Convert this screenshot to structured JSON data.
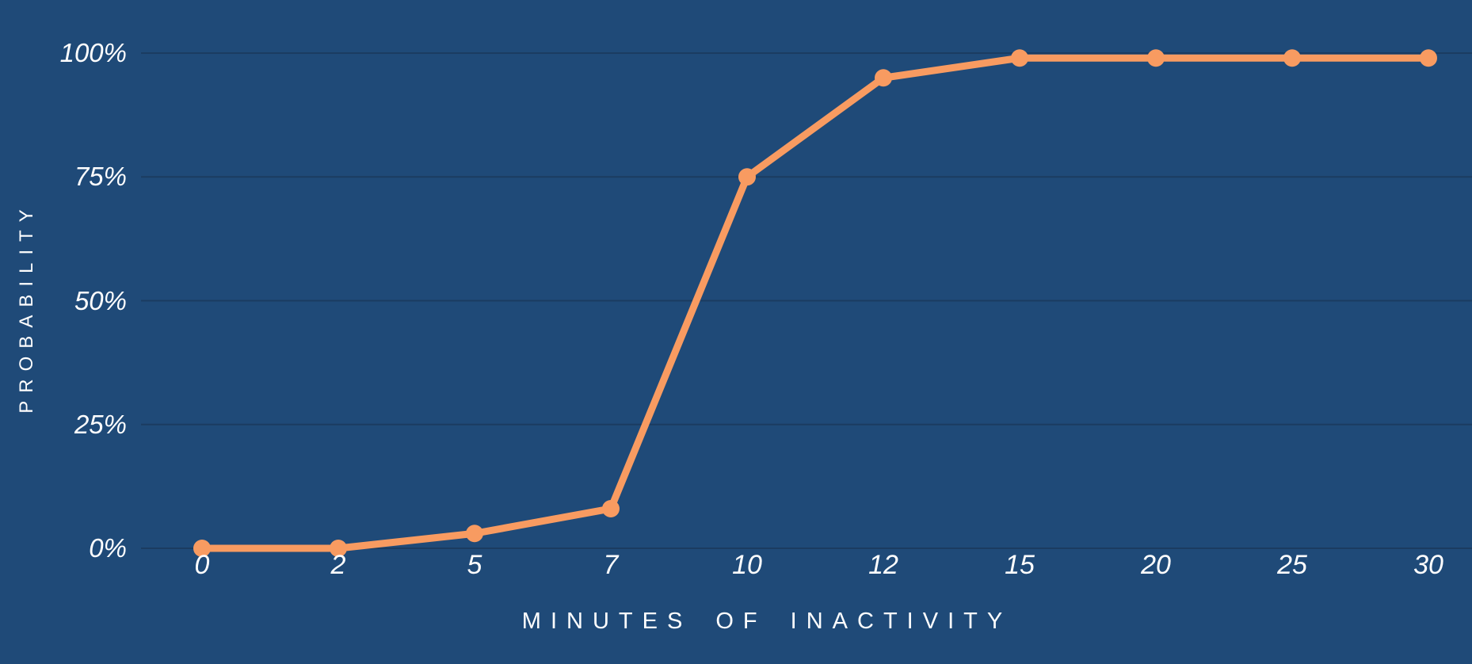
{
  "page": {
    "background_color": "#1f4a78"
  },
  "chart_data": {
    "type": "line",
    "title": "",
    "categories": [
      "0",
      "2",
      "5",
      "7",
      "10",
      "12",
      "15",
      "20",
      "25",
      "30"
    ],
    "series": [
      {
        "name": "probability",
        "values": [
          0,
          0,
          3,
          8,
          75,
          95,
          99,
          99,
          99,
          99
        ]
      }
    ],
    "xlabel": "MINUTES OF INACTIVITY",
    "ylabel": "PROBABILITY",
    "y_ticks": [
      {
        "label": "0%",
        "value": 0
      },
      {
        "label": "25%",
        "value": 25
      },
      {
        "label": "50%",
        "value": 50
      },
      {
        "label": "75%",
        "value": 75
      },
      {
        "label": "100%",
        "value": 100
      }
    ],
    "ylim": [
      0,
      100
    ],
    "x_axis_type": "categorical-equal-spacing",
    "grid": "horizontal-only",
    "legend": "none",
    "colors": {
      "background": "#1f4a78",
      "line": "#f89b61",
      "marker": "#f89b61",
      "gridline": "#1b3c61",
      "tick_text": "#ffffff",
      "axis_title_text": "#ffffff"
    }
  }
}
